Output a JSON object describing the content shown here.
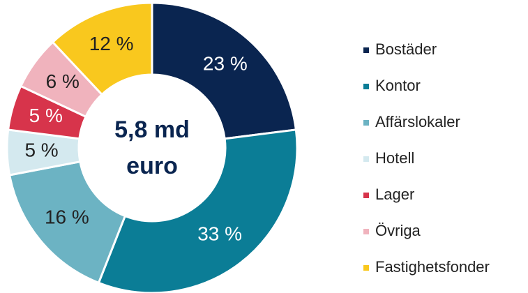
{
  "chart_data": {
    "type": "donut",
    "center_text": [
      "5,8 md",
      "euro"
    ],
    "categories": [
      "Bostäder",
      "Kontor",
      "Affärslokaler",
      "Hotell",
      "Lager",
      "Övriga",
      "Fastighetsfonder"
    ],
    "values": [
      23,
      33,
      16,
      5,
      5,
      6,
      12
    ],
    "value_labels": [
      "23 %",
      "33 %",
      "16 %",
      "5 %",
      "5 %",
      "6 %",
      "12 %"
    ],
    "colors": [
      "#0a2550",
      "#0b7d96",
      "#6cb3c3",
      "#d4e9ef",
      "#d7344b",
      "#f0b3bd",
      "#f9c81e"
    ],
    "legend": "right"
  }
}
